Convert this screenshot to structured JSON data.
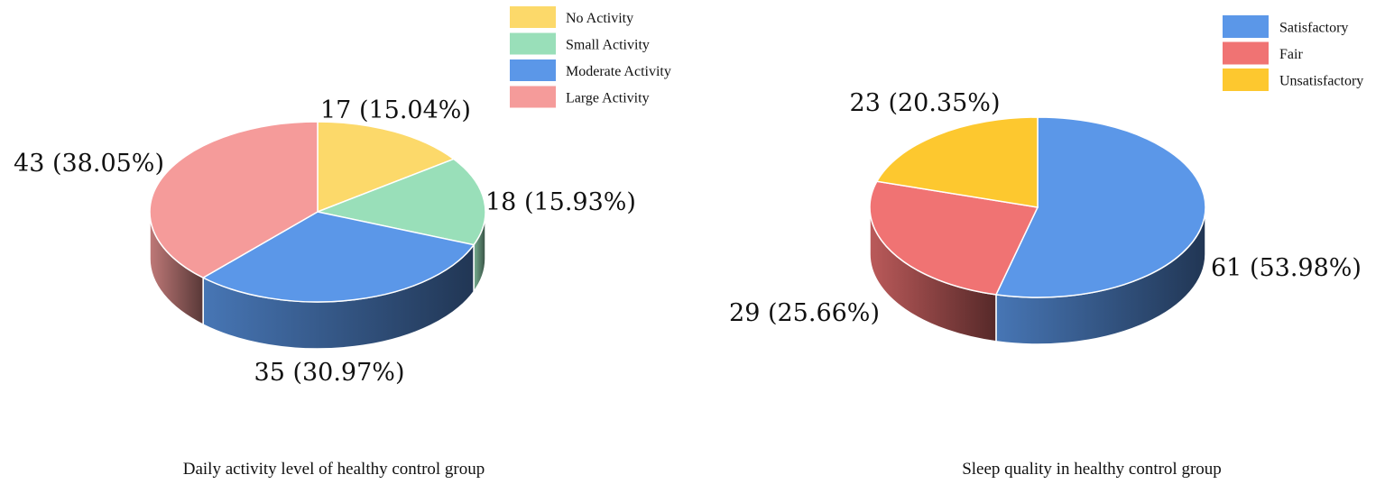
{
  "chart_data": [
    {
      "type": "pie",
      "style": "3d",
      "title": "Daily activity level of healthy control group",
      "legend_position": "top-right",
      "series": [
        {
          "name": "No Activity",
          "value": 17,
          "percent": "15.04%",
          "color": "#FCD96A",
          "label": "17 (15.04%)"
        },
        {
          "name": "Small Activity",
          "value": 18,
          "percent": "15.93%",
          "color": "#99DFB9",
          "label": "18 (15.93%)"
        },
        {
          "name": "Moderate Activity",
          "value": 35,
          "percent": "30.97%",
          "color": "#5B97E8",
          "label": "35 (30.97%)"
        },
        {
          "name": "Large Activity",
          "value": 43,
          "percent": "38.05%",
          "color": "#F59B9A",
          "label": "43 (38.05%)"
        }
      ]
    },
    {
      "type": "pie",
      "style": "3d",
      "title": "Sleep quality in healthy control group",
      "legend_position": "top-right",
      "series": [
        {
          "name": "Satisfactory",
          "value": 61,
          "percent": "53.98%",
          "color": "#5B97E8",
          "label": "61 (53.98%)"
        },
        {
          "name": "Fair",
          "value": 29,
          "percent": "25.66%",
          "color": "#F07373",
          "label": "29 (25.66%)"
        },
        {
          "name": "Unsatisfactory",
          "value": 23,
          "percent": "20.35%",
          "color": "#FDC82F",
          "label": "23 (20.35%)"
        }
      ]
    }
  ]
}
